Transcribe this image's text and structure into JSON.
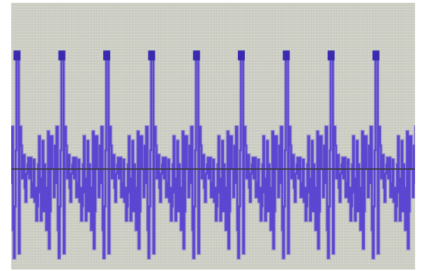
{
  "chart_data": {
    "type": "line",
    "title": "",
    "xlabel": "",
    "ylabel": "",
    "grid": true,
    "xlim": [
      0,
      9
    ],
    "ylim": [
      -1.2,
      1.7
    ],
    "baseline": 0,
    "cycles": 9,
    "phase_start": 0.92,
    "cycle_shape": {
      "t": [
        0.0,
        0.03,
        0.05,
        0.07,
        0.09,
        0.12,
        0.14,
        0.16,
        0.18,
        0.2,
        0.22,
        0.25,
        0.27,
        0.3,
        0.32,
        0.34,
        0.36,
        0.38,
        0.4,
        0.42,
        0.44,
        0.46,
        0.48,
        0.5,
        0.53,
        0.56,
        0.58,
        0.6,
        0.62,
        0.64,
        0.66,
        0.68,
        0.7,
        0.72,
        0.74,
        0.76,
        0.78,
        0.8,
        0.82,
        0.84,
        0.86,
        0.88,
        0.9,
        0.92,
        0.94,
        0.96,
        1.0
      ],
      "y": [
        0.0,
        -0.3,
        0.25,
        -0.15,
        0.45,
        -0.65,
        -0.95,
        -0.4,
        0.2,
        1.25,
        1.25,
        -0.9,
        0.45,
        0.25,
        -0.1,
        0.0,
        0.15,
        -0.2,
        -0.35,
        -0.05,
        0.05,
        0.12,
        -0.1,
        0.12,
        -0.3,
        -0.15,
        0.1,
        -0.35,
        -0.2,
        -0.55,
        -0.4,
        0.05,
        0.35,
        -0.25,
        -0.55,
        -0.1,
        0.3,
        -0.45,
        0.05,
        -0.2,
        -0.65,
        -0.2,
        0.4,
        -0.85,
        -0.45,
        0.35,
        0.0
      ]
    },
    "colors": {
      "trace": "#5a46d0",
      "trace_dark": "#3a2ab0",
      "baseline": "#3c3b43",
      "screen": "#c9cac0"
    }
  }
}
